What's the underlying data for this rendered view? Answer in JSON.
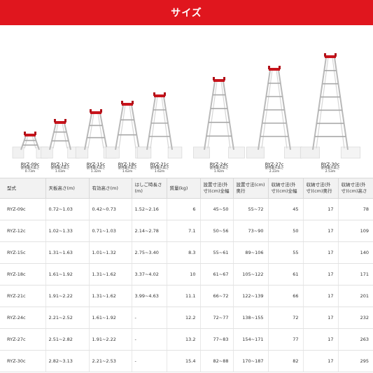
{
  "banner": {
    "title": "サイズ"
  },
  "ladders": [
    {
      "model": "RYZ-09c",
      "use_label": "使用最大高さ",
      "height": "0.73m"
    },
    {
      "model": "RYZ-12c",
      "use_label": "使用最大高さ",
      "height": "1.03m"
    },
    {
      "model": "RYZ-15c",
      "use_label": "使用最大高さ",
      "height": "1.32m"
    },
    {
      "model": "RYZ-18c",
      "use_label": "使用最大高さ",
      "height": "1.62m"
    },
    {
      "model": "RYZ-21c",
      "use_label": "使用最大高さ",
      "height": "1.62m"
    },
    {
      "model": "RYZ-24c",
      "use_label": "使用最大高さ",
      "height": "1.92m"
    },
    {
      "model": "RYZ-27c",
      "use_label": "使用最大高さ",
      "height": "2.22m"
    },
    {
      "model": "RYZ-30c",
      "use_label": "使用最大高さ",
      "height": "2.53m"
    }
  ],
  "table": {
    "headers": [
      "型式",
      "天板高さ(m)",
      "有効高さ(m)",
      "はしご時長さ(m)",
      "質量(kg)",
      "設置寸法(外寸)(cm)全幅",
      "設置寸法(cm)奥行",
      "収納寸法(外寸)(cm)全幅",
      "収納寸法(外寸)(cm)奥行",
      "収納寸法(外寸)(cm)高さ"
    ],
    "rows": [
      [
        "RYZ-09c",
        "0.72~1.03",
        "0.42~0.73",
        "1.52~2.16",
        "6",
        "45~50",
        "55~72",
        "45",
        "17",
        "78"
      ],
      [
        "RYZ-12c",
        "1.02~1.33",
        "0.71~1.03",
        "2.14~2.78",
        "7.1",
        "50~56",
        "73~90",
        "50",
        "17",
        "109"
      ],
      [
        "RYZ-15c",
        "1.31~1.63",
        "1.01~1.32",
        "2.75~3.40",
        "8.3",
        "55~61",
        "89~106",
        "55",
        "17",
        "140"
      ],
      [
        "RYZ-18c",
        "1.61~1.92",
        "1.31~1.62",
        "3.37~4.02",
        "10",
        "61~67",
        "105~122",
        "61",
        "17",
        "171"
      ],
      [
        "RYZ-21c",
        "1.91~2.22",
        "1.31~1.62",
        "3.99~4.63",
        "11.1",
        "66~72",
        "122~139",
        "66",
        "17",
        "201"
      ],
      [
        "RYZ-24c",
        "2.21~2.52",
        "1.61~1.92",
        "-",
        "12.2",
        "72~77",
        "138~155",
        "72",
        "17",
        "232"
      ],
      [
        "RYZ-27c",
        "2.51~2.82",
        "1.91~2.22",
        "-",
        "13.2",
        "77~83",
        "154~171",
        "77",
        "17",
        "263"
      ],
      [
        "RYZ-30c",
        "2.82~3.13",
        "2.21~2.53",
        "-",
        "15.4",
        "82~88",
        "170~187",
        "82",
        "17",
        "295"
      ]
    ]
  }
}
